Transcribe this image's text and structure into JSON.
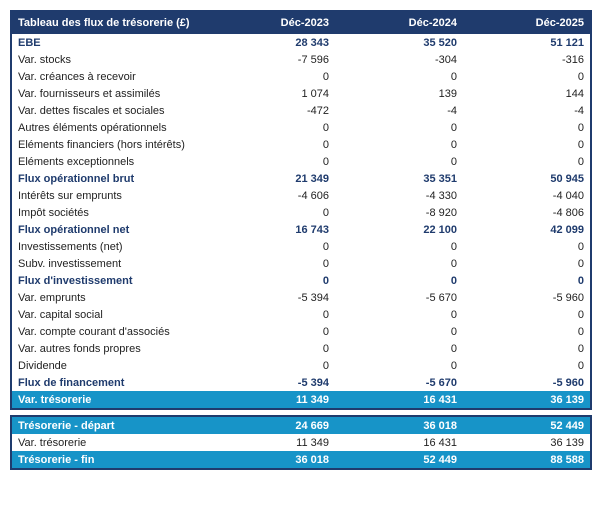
{
  "chart_data": {
    "type": "table",
    "title": "Tableau des flux de trésorerie (£)",
    "columns": [
      "Déc-2023",
      "Déc-2024",
      "Déc-2025"
    ],
    "rows": [
      {
        "label": "EBE",
        "values": [
          "28 343",
          "35 520",
          "51 121"
        ],
        "style": "bold"
      },
      {
        "label": "Var. stocks",
        "values": [
          "-7 596",
          "-304",
          "-316"
        ],
        "style": "normal"
      },
      {
        "label": "Var. créances à recevoir",
        "values": [
          "0",
          "0",
          "0"
        ],
        "style": "normal"
      },
      {
        "label": "Var. fournisseurs et assimilés",
        "values": [
          "1 074",
          "139",
          "144"
        ],
        "style": "normal"
      },
      {
        "label": "Var. dettes fiscales et sociales",
        "values": [
          "-472",
          "-4",
          "-4"
        ],
        "style": "normal"
      },
      {
        "label": "Autres éléments opérationnels",
        "values": [
          "0",
          "0",
          "0"
        ],
        "style": "normal"
      },
      {
        "label": "Eléments financiers (hors intérêts)",
        "values": [
          "0",
          "0",
          "0"
        ],
        "style": "normal"
      },
      {
        "label": "Eléments exceptionnels",
        "values": [
          "0",
          "0",
          "0"
        ],
        "style": "normal"
      },
      {
        "label": "Flux opérationnel brut",
        "values": [
          "21 349",
          "35 351",
          "50 945"
        ],
        "style": "bold"
      },
      {
        "label": "Intérêts sur emprunts",
        "values": [
          "-4 606",
          "-4 330",
          "-4 040"
        ],
        "style": "normal"
      },
      {
        "label": "Impôt sociétés",
        "values": [
          "0",
          "-8 920",
          "-4 806"
        ],
        "style": "normal"
      },
      {
        "label": "Flux opérationnel net",
        "values": [
          "16 743",
          "22 100",
          "42 099"
        ],
        "style": "bold"
      },
      {
        "label": "Investissements (net)",
        "values": [
          "0",
          "0",
          "0"
        ],
        "style": "normal"
      },
      {
        "label": "Subv. investissement",
        "values": [
          "0",
          "0",
          "0"
        ],
        "style": "normal"
      },
      {
        "label": "Flux d'investissement",
        "values": [
          "0",
          "0",
          "0"
        ],
        "style": "bold"
      },
      {
        "label": "Var. emprunts",
        "values": [
          "-5 394",
          "-5 670",
          "-5 960"
        ],
        "style": "normal"
      },
      {
        "label": "Var. capital social",
        "values": [
          "0",
          "0",
          "0"
        ],
        "style": "normal"
      },
      {
        "label": "Var. compte courant d'associés",
        "values": [
          "0",
          "0",
          "0"
        ],
        "style": "normal"
      },
      {
        "label": "Var. autres fonds propres",
        "values": [
          "0",
          "0",
          "0"
        ],
        "style": "normal"
      },
      {
        "label": "Dividende",
        "values": [
          "0",
          "0",
          "0"
        ],
        "style": "normal"
      },
      {
        "label": "Flux de financement",
        "values": [
          "-5 394",
          "-5 670",
          "-5 960"
        ],
        "style": "bold"
      },
      {
        "label": "Var. trésorerie",
        "values": [
          "11 349",
          "16 431",
          "36 139"
        ],
        "style": "highlight"
      }
    ],
    "summary_rows": [
      {
        "label": "Trésorerie - départ",
        "values": [
          "24 669",
          "36 018",
          "52 449"
        ],
        "style": "highlight"
      },
      {
        "label": "Var. trésorerie",
        "values": [
          "11 349",
          "16 431",
          "36 139"
        ],
        "style": "normal"
      },
      {
        "label": "Trésorerie - fin",
        "values": [
          "36 018",
          "52 449",
          "88 588"
        ],
        "style": "highlight"
      }
    ],
    "colors": {
      "header_bg": "#1F3B6D",
      "header_text": "#FFFFFF",
      "highlight_bg": "#1794C8",
      "highlight_text": "#FFFFFF",
      "bold_text": "#1F3B6D",
      "body_text": "#222222"
    }
  }
}
